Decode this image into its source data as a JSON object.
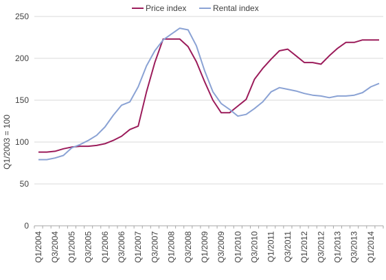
{
  "chart_data": {
    "type": "line",
    "title": "",
    "xlabel": "",
    "ylabel": "Q1/2003 = 100",
    "ylim": [
      0,
      250
    ],
    "yticks": [
      0,
      50,
      100,
      150,
      200,
      250
    ],
    "grid": "horizontal",
    "legend_position": "top-center",
    "x": [
      "Q1/2004",
      "Q2/2004",
      "Q3/2004",
      "Q4/2004",
      "Q1/2005",
      "Q2/2005",
      "Q3/2005",
      "Q4/2005",
      "Q1/2006",
      "Q2/2006",
      "Q3/2006",
      "Q4/2006",
      "Q1/2007",
      "Q2/2007",
      "Q3/2007",
      "Q4/2007",
      "Q1/2008",
      "Q2/2008",
      "Q3/2008",
      "Q4/2008",
      "Q1/2009",
      "Q2/2009",
      "Q3/2009",
      "Q4/2009",
      "Q1/2010",
      "Q2/2010",
      "Q3/2010",
      "Q4/2010",
      "Q1/2011",
      "Q2/2011",
      "Q3/2011",
      "Q4/2011",
      "Q1/2012",
      "Q2/2012",
      "Q3/2012",
      "Q4/2012",
      "Q1/2013",
      "Q2/2013",
      "Q3/2013",
      "Q4/2013",
      "Q1/2014",
      "Q2/2014"
    ],
    "x_tick_labels": [
      "Q1/2004",
      "Q3/2004",
      "Q1/2005",
      "Q3/2005",
      "Q1/2006",
      "Q3/2006",
      "Q1/2007",
      "Q3/2007",
      "Q1/2008",
      "Q3/2008",
      "Q1/2009",
      "Q3/2009",
      "Q1/2010",
      "Q3/2010",
      "Q1/2011",
      "Q3/2011",
      "Q1/2012",
      "Q3/2012",
      "Q1/2013",
      "Q3/2013",
      "Q1/2014"
    ],
    "series": [
      {
        "name": "Price index",
        "color": "#9b1b5a",
        "values": [
          88,
          88,
          89,
          92,
          94,
          95,
          95,
          96,
          98,
          102,
          107,
          115,
          119,
          160,
          195,
          223,
          223,
          223,
          214,
          196,
          172,
          150,
          135,
          135,
          143,
          151,
          175,
          188,
          199,
          209,
          211,
          203,
          195,
          195,
          193,
          203,
          212,
          219,
          219,
          222,
          222,
          222
        ]
      },
      {
        "name": "Rental index",
        "color": "#8aa2d4",
        "values": [
          79,
          79,
          81,
          84,
          93,
          97,
          102,
          108,
          118,
          132,
          144,
          148,
          166,
          191,
          209,
          222,
          229,
          236,
          234,
          215,
          185,
          160,
          146,
          139,
          131,
          133,
          140,
          148,
          160,
          165,
          163,
          161,
          158,
          156,
          155,
          153,
          155,
          155,
          156,
          159,
          166,
          170
        ]
      }
    ]
  }
}
